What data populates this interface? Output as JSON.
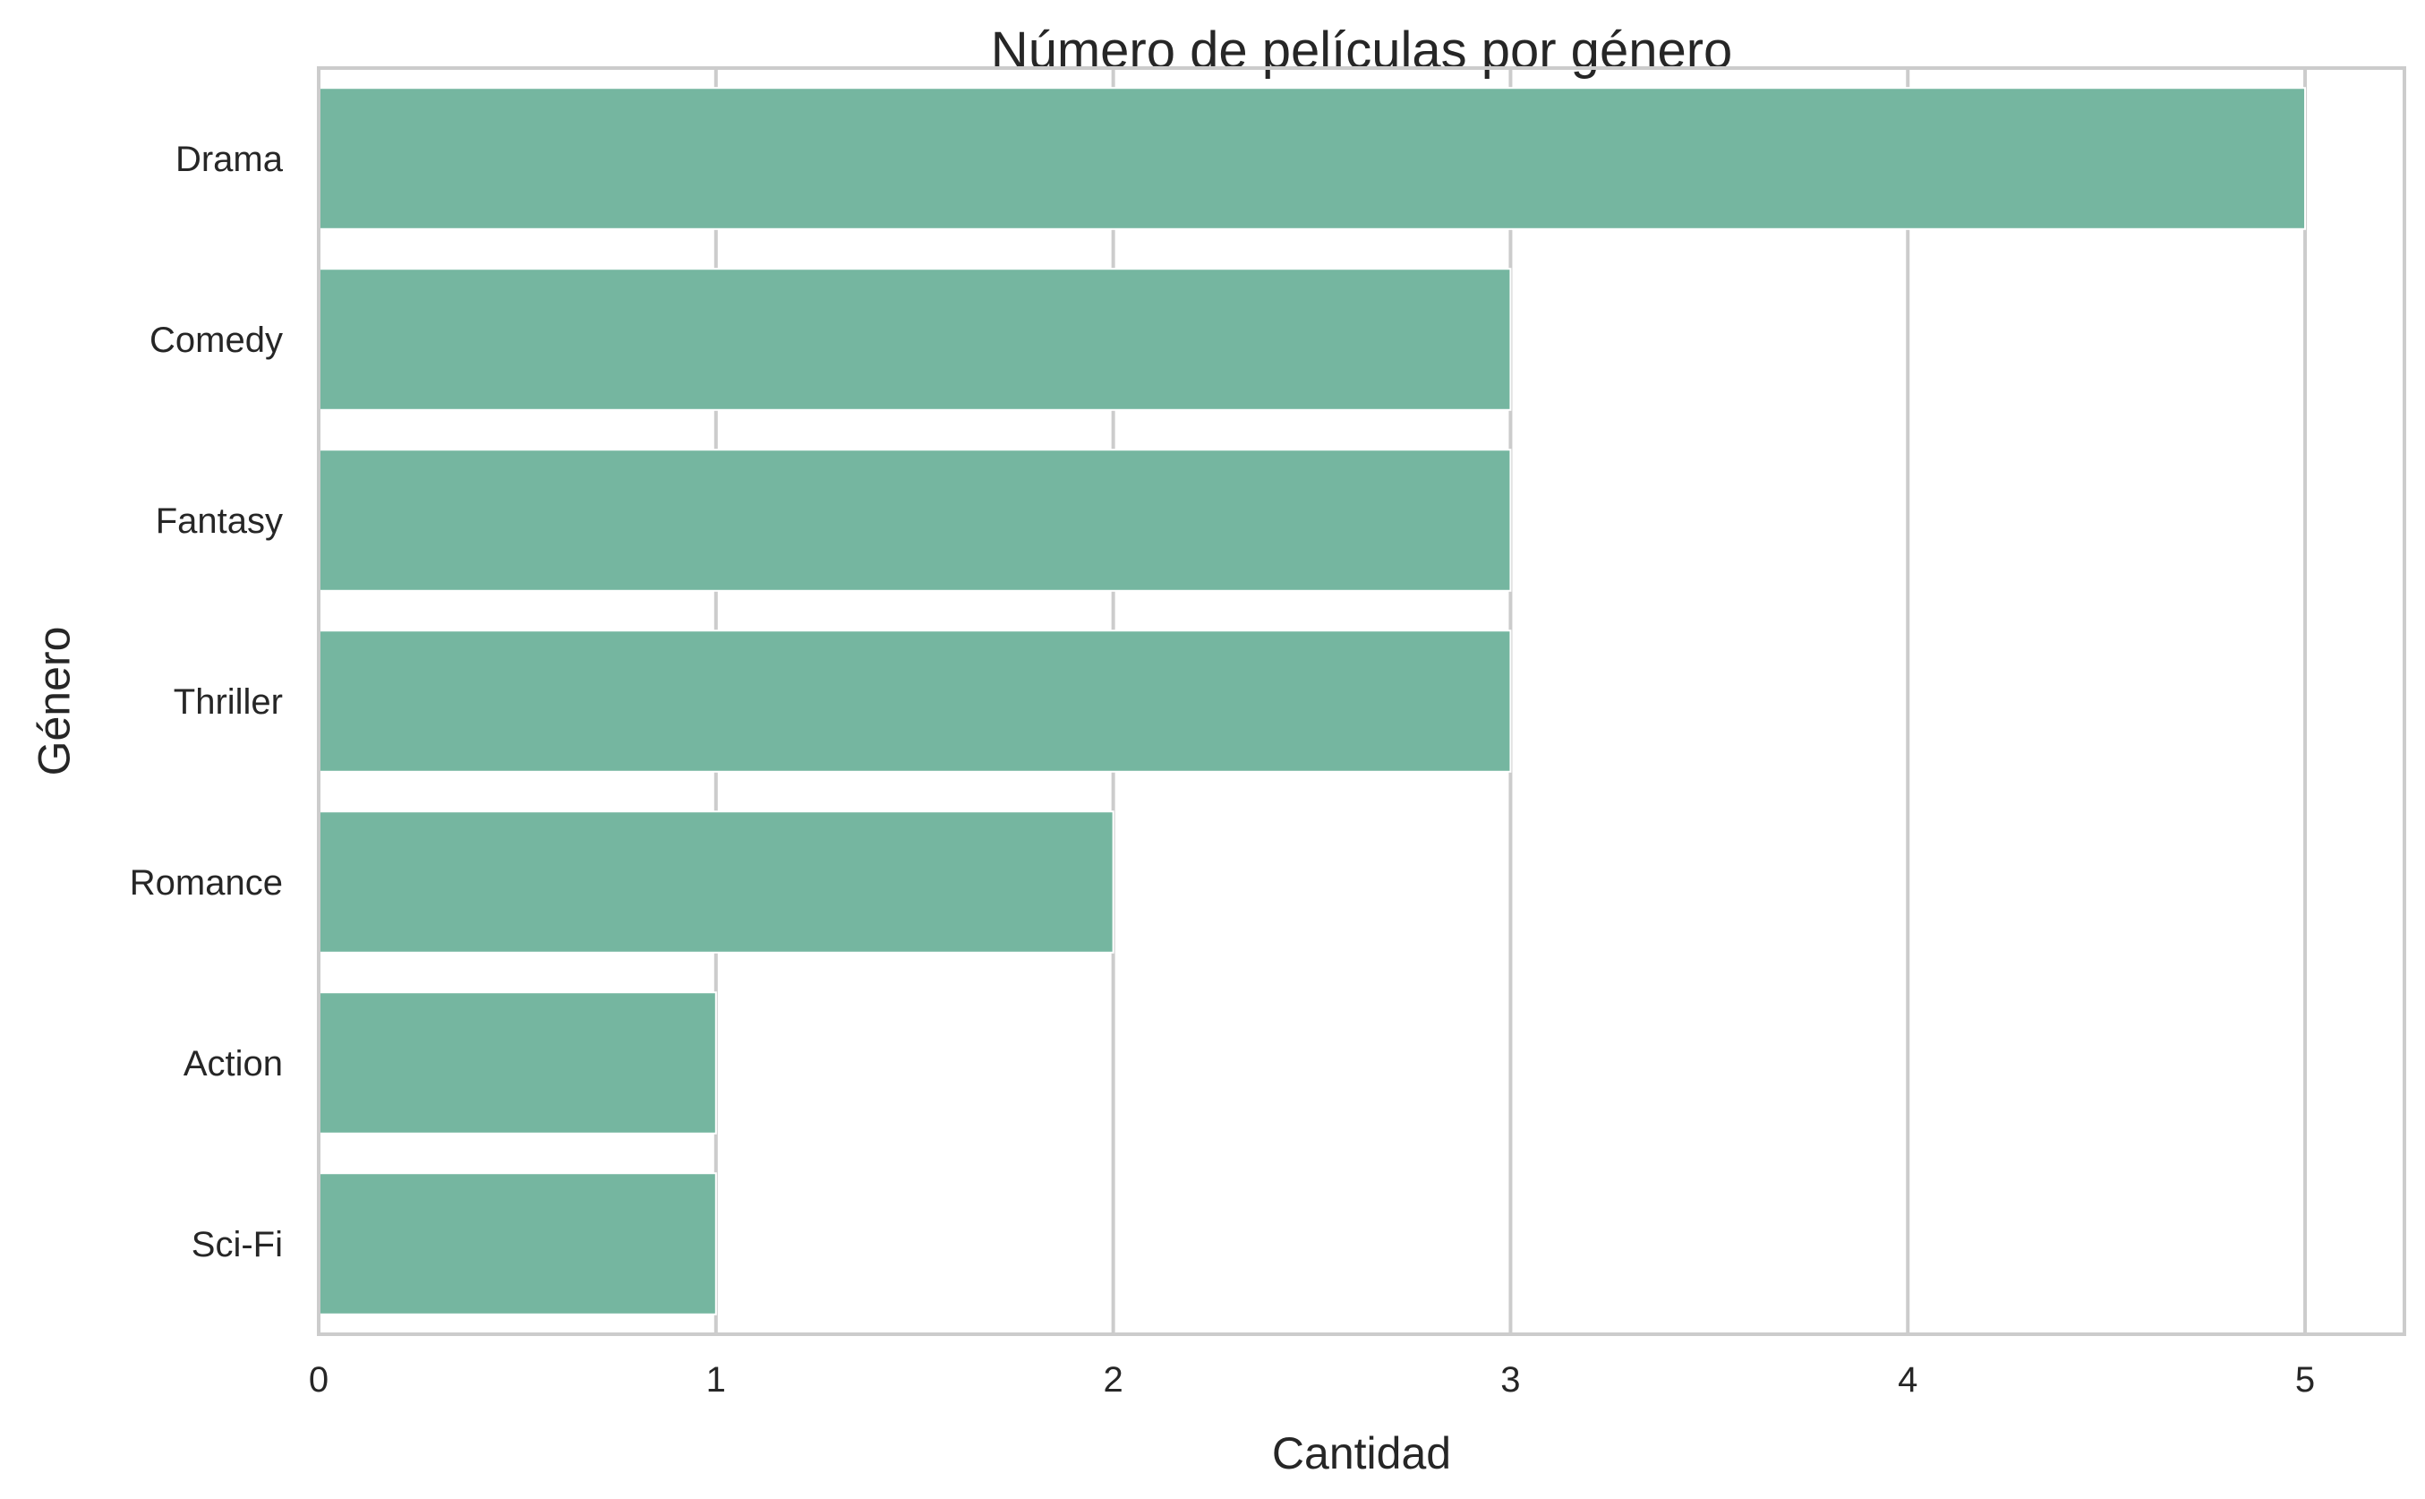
{
  "chart_data": {
    "type": "bar",
    "orientation": "horizontal",
    "title": "Número de películas por género",
    "xlabel": "Cantidad",
    "ylabel": "Género",
    "categories": [
      "Drama",
      "Comedy",
      "Fantasy",
      "Thriller",
      "Romance",
      "Action",
      "Sci-Fi"
    ],
    "values": [
      5,
      3,
      3,
      3,
      2,
      1,
      1
    ],
    "xlim": [
      0,
      5.25
    ],
    "xticks": [
      "0",
      "1",
      "2",
      "3",
      "4",
      "5"
    ],
    "grid": true,
    "legend": "none",
    "colors": {
      "bar": "#75b6a0",
      "grid": "#cccccc",
      "frame": "#cccccc",
      "text": "#262626"
    }
  }
}
